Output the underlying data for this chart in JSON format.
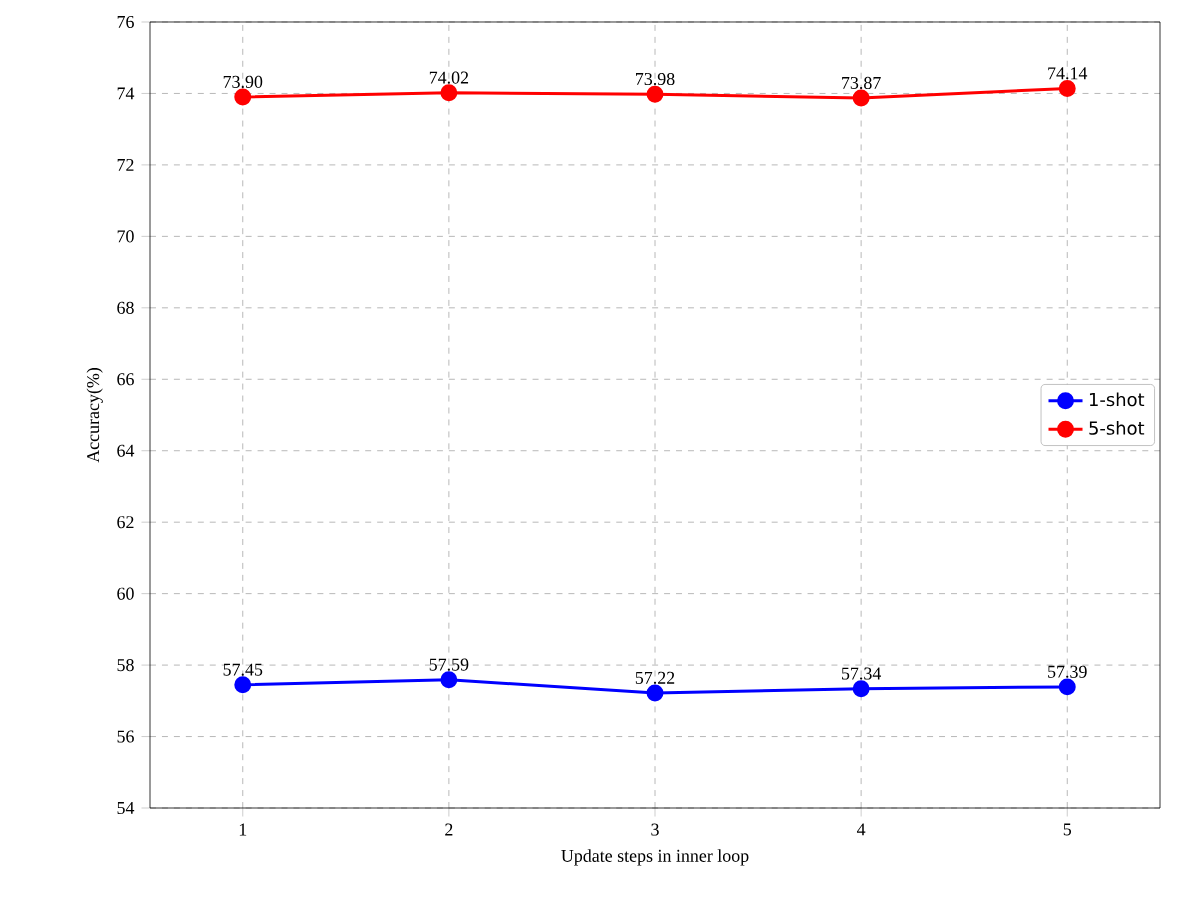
{
  "chart_data": {
    "type": "line",
    "xlabel": "Update steps in inner loop",
    "ylabel": "Accuracy(%)",
    "x": [
      1,
      2,
      3,
      4,
      5
    ],
    "series": [
      {
        "name": "1-shot",
        "color": "#0000ff",
        "values": [
          57.45,
          57.59,
          57.22,
          57.34,
          57.39
        ],
        "value_labels": [
          "57.45",
          "57.59",
          "57.22",
          "57.34",
          "57.39"
        ]
      },
      {
        "name": "5-shot",
        "color": "#ff0000",
        "values": [
          73.9,
          74.02,
          73.98,
          73.87,
          74.14
        ],
        "value_labels": [
          "73.90",
          "74.02",
          "73.98",
          "73.87",
          "74.14"
        ]
      }
    ],
    "xlim": [
      0.55,
      5.45
    ],
    "ylim": [
      54,
      76
    ],
    "xticks": [
      1,
      2,
      3,
      4,
      5
    ],
    "yticks": [
      54,
      56,
      58,
      60,
      62,
      64,
      66,
      68,
      70,
      72,
      74,
      76
    ],
    "grid": true,
    "legend": "right",
    "marker": "circle",
    "line_style": "solid"
  }
}
